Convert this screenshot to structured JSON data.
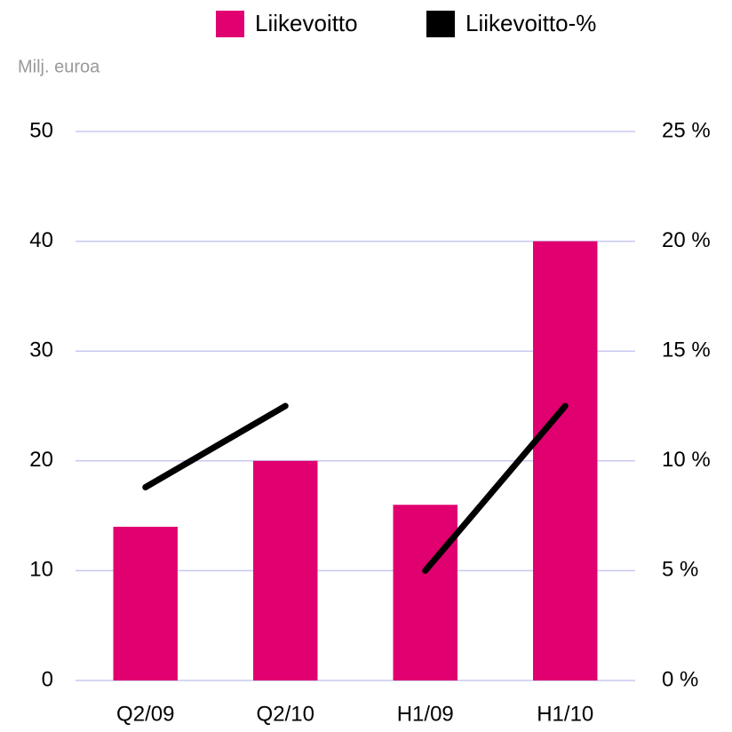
{
  "chart_data": {
    "type": "bar_line",
    "y_label": "Milj. euroa",
    "categories": [
      "Q2/09",
      "Q2/10",
      "H1/09",
      "H1/10"
    ],
    "series": [
      {
        "name": "Liikevoitto",
        "color": "#e0006f",
        "type": "bar",
        "values": [
          14,
          20,
          16,
          40
        ]
      },
      {
        "name": "Liikevoitto-%",
        "color": "#000000",
        "type": "line",
        "axis": "y2",
        "values": [
          8.8,
          12.5,
          5.0,
          12.5
        ]
      }
    ],
    "ylim": [
      0,
      50
    ],
    "yticks": [
      0,
      10,
      20,
      30,
      40,
      50
    ],
    "y2lim": [
      0,
      25
    ],
    "y2ticks": [
      {
        "value": 0,
        "label": "0 %"
      },
      {
        "value": 5,
        "label": "5 %"
      },
      {
        "value": 10,
        "label": "10 %"
      },
      {
        "value": 15,
        "label": "15 %"
      },
      {
        "value": 20,
        "label": "20 %"
      },
      {
        "value": 25,
        "label": "25 %"
      }
    ],
    "grid": true,
    "legend": "top"
  }
}
